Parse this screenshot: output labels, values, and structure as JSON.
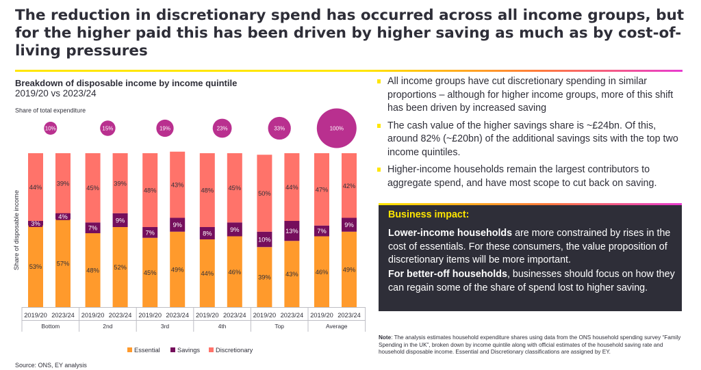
{
  "headline": "The reduction in discretionary spend has occurred across all income groups, but for the higher paid this has been driven by higher saving as much as by cost-of-living pressures",
  "colors": {
    "essential": "#ff9a2c",
    "savings": "#750e5c",
    "discretionary": "#ff736a",
    "bubble": "#b9308f",
    "accent_yellow": "#ffe600",
    "dark_box": "#2e2e38"
  },
  "chart_data": {
    "type": "bar",
    "stacked": true,
    "title": "Breakdown of disposable income by income quintile",
    "subtitle": "2019/20 vs 2023/24",
    "ylabel": "Share of disposable income",
    "bubble_label": "Share of total expenditure",
    "ylim": [
      0,
      100
    ],
    "groups": [
      "Bottom",
      "2nd",
      "3rd",
      "4th",
      "Top",
      "Average"
    ],
    "periods": [
      "2019/20",
      "2023/24"
    ],
    "categories": [
      "2019/20",
      "2023/24",
      "2019/20",
      "2023/24",
      "2019/20",
      "2023/24",
      "2019/20",
      "2023/24",
      "2019/20",
      "2023/24",
      "2019/20",
      "2023/24"
    ],
    "series": [
      {
        "name": "Essential",
        "values": [
          53,
          57,
          48,
          52,
          45,
          49,
          44,
          46,
          39,
          43,
          46,
          49
        ],
        "labels": [
          "53%",
          "57%",
          "48%",
          "52%",
          "45%",
          "49%",
          "44%",
          "46%",
          "39%",
          "43%",
          "46%",
          "49%"
        ]
      },
      {
        "name": "Savings",
        "values": [
          3,
          4,
          7,
          9,
          7,
          9,
          8,
          9,
          10,
          13,
          7,
          9
        ],
        "labels": [
          "3%",
          "4%",
          "7%",
          "9%",
          "7%",
          "9%",
          "8%",
          "9%",
          "10%",
          "13%",
          "7%",
          "9%"
        ]
      },
      {
        "name": "Discretionary",
        "values": [
          44,
          39,
          45,
          39,
          48,
          43,
          48,
          45,
          50,
          44,
          47,
          42
        ],
        "labels": [
          "44%",
          "39%",
          "45%",
          "39%",
          "48%",
          "43%",
          "48%",
          "45%",
          "50%",
          "44%",
          "47%",
          "42%"
        ]
      }
    ],
    "bubbles": [
      {
        "group": "Bottom",
        "value": 10,
        "label": "10%"
      },
      {
        "group": "2nd",
        "value": 15,
        "label": "15%"
      },
      {
        "group": "3rd",
        "value": 19,
        "label": "19%"
      },
      {
        "group": "4th",
        "value": 23,
        "label": "23%"
      },
      {
        "group": "Top",
        "value": 33,
        "label": "33%"
      },
      {
        "group": "Average",
        "value": 100,
        "label": "100%"
      }
    ],
    "legend": [
      "Essential",
      "Savings",
      "Discretionary"
    ],
    "legend_position": "bottom",
    "grid": false
  },
  "bullets": [
    "All income groups have cut discretionary spending in similar proportions – although for higher income groups, more of this shift has been driven by increased saving",
    "The cash value of the higher savings share is ~£24bn. Of this, around 82% (~£20bn) of the additional savings sits with the top two income quintiles.",
    "Higher-income households remain the largest contributors to aggregate spend, and have most scope to cut back on saving."
  ],
  "impact": {
    "title": "Business impact:",
    "p1_bold": "Lower-income households",
    "p1_rest": " are more constrained by rises in the cost of essentials. For these consumers, the value proposition of discretionary items will be more important.",
    "p2_bold": "For better-off households",
    "p2_rest": ", businesses should focus on how they can regain some of the share of spend lost to higher saving."
  },
  "note": {
    "label": "Note",
    "text": ": The analysis estimates household expenditure shares using data from the ONS household spending survey “Family Spending in the UK”, broken down by income quintile along with official estimates of the household saving rate and household disposable income. Essential and Discretionary classifications are assigned by EY."
  },
  "source": "Source: ONS, EY analysis"
}
